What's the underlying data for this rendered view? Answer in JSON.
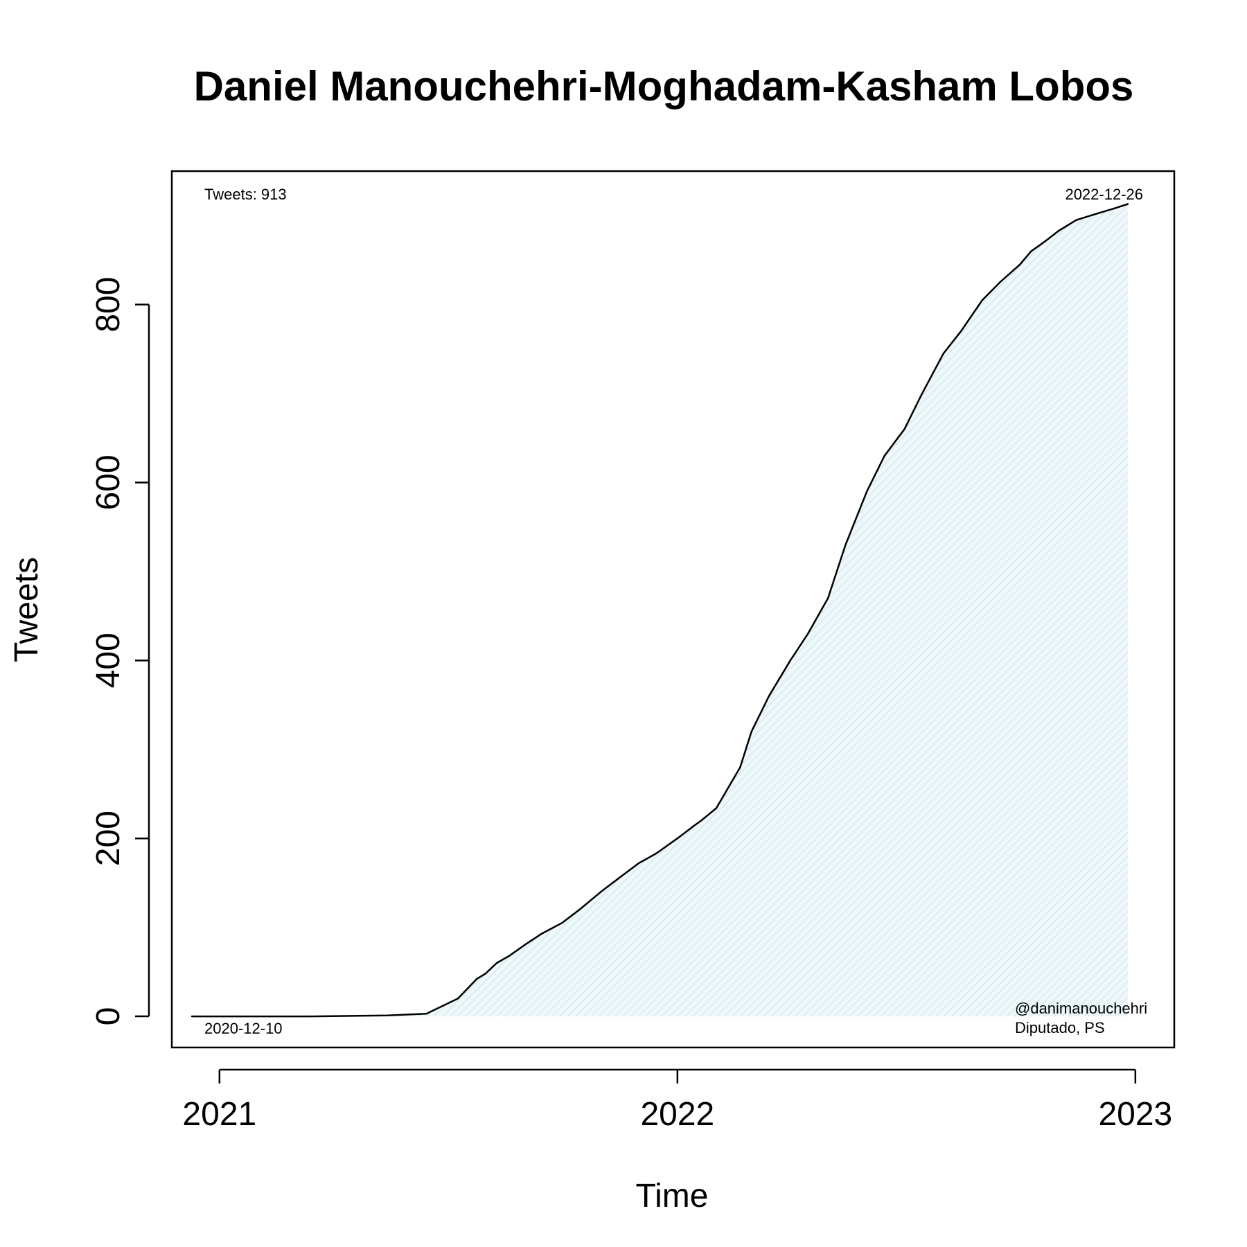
{
  "chart_data": {
    "type": "area",
    "title": "Daniel Manouchehri-Moghadam-Kasham Lobos",
    "xlabel": "Time",
    "ylabel": "Tweets",
    "x_ticks": [
      "2021",
      "2022",
      "2023"
    ],
    "y_ticks": [
      "0",
      "200",
      "400",
      "600",
      "800"
    ],
    "xlim": [
      "2020-11-24",
      "2023-02-01"
    ],
    "ylim": [
      -35,
      950
    ],
    "fill_color": "#e3f1f4",
    "line_color": "#000000",
    "grid": false,
    "series": [
      {
        "x": [
          "2020-12-10",
          "2021-01-15",
          "2021-03-15",
          "2021-05-15",
          "2021-06-15",
          "2021-07-10",
          "2021-07-25",
          "2021-08-01",
          "2021-08-10",
          "2021-08-20",
          "2021-09-01",
          "2021-09-15",
          "2021-10-01",
          "2021-10-15",
          "2021-11-01",
          "2021-11-15",
          "2021-12-01",
          "2021-12-15",
          "2022-01-01",
          "2022-01-15",
          "2022-01-20",
          "2022-02-01",
          "2022-02-20",
          "2022-03-01",
          "2022-03-15",
          "2022-04-01",
          "2022-04-15",
          "2022-05-01",
          "2022-05-15",
          "2022-06-01",
          "2022-06-15",
          "2022-07-01",
          "2022-07-15",
          "2022-08-01",
          "2022-08-15",
          "2022-09-01",
          "2022-09-15",
          "2022-10-01",
          "2022-10-10",
          "2022-10-20",
          "2022-11-01",
          "2022-11-15",
          "2022-12-01",
          "2022-12-15",
          "2022-12-26"
        ],
        "y": [
          0,
          0,
          0,
          1,
          3,
          20,
          42,
          48,
          60,
          68,
          80,
          93,
          105,
          120,
          140,
          155,
          172,
          183,
          200,
          215,
          220,
          234,
          280,
          320,
          360,
          400,
          430,
          470,
          530,
          590,
          630,
          660,
          700,
          745,
          770,
          805,
          825,
          845,
          860,
          870,
          883,
          895,
          902,
          908,
          913
        ]
      }
    ],
    "annotations": {
      "top_left": "Tweets: 913",
      "top_right": "2022-12-26",
      "bottom_left": "2020-12-10",
      "bottom_right_1": "@danimanouchehri",
      "bottom_right_2": "Diputado, PS"
    }
  }
}
